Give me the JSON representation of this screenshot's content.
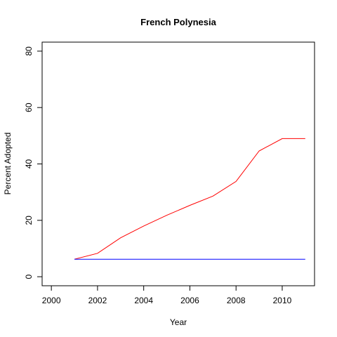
{
  "chart_data": {
    "type": "line",
    "title": "French Polynesia",
    "xlabel": "Year",
    "ylabel": "Percent Adopted",
    "xlim": [
      1999.6,
      2011.4
    ],
    "ylim": [
      -3.2,
      83.2
    ],
    "x_ticks": [
      2000,
      2002,
      2004,
      2006,
      2008,
      2010
    ],
    "y_ticks": [
      0,
      20,
      40,
      60,
      80
    ],
    "x": [
      2001,
      2002,
      2003,
      2004,
      2005,
      2006,
      2007,
      2008,
      2009,
      2010,
      2011
    ],
    "series": [
      {
        "color": "#ff0000",
        "values": [
          6.2,
          8.3,
          13.8,
          18.0,
          21.8,
          25.3,
          28.6,
          33.8,
          44.6,
          49.0,
          49.0
        ]
      },
      {
        "color": "#0000ff",
        "values": [
          6.2,
          6.2,
          6.2,
          6.2,
          6.2,
          6.2,
          6.2,
          6.2,
          6.2,
          6.2,
          6.2
        ]
      }
    ],
    "grid": false,
    "legend": "none"
  }
}
